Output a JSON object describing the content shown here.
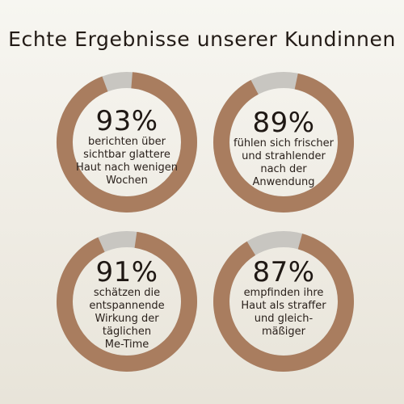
{
  "title": "Echte Ergebnisse unserer Kundinnen",
  "colors": {
    "ring_fill": "#a97d5f",
    "ring_track": "#c8c6c1",
    "background": "#f2f0ea"
  },
  "stats": [
    {
      "percent_label": "93%",
      "value": 93,
      "desc_lines": [
        "berichten über",
        "sichtbar glattere",
        "Haut nach wenigen",
        "Wochen"
      ]
    },
    {
      "percent_label": "89%",
      "value": 89,
      "desc_lines": [
        "fühlen sich frischer",
        "und strahlender",
        "nach der",
        "Anwendung"
      ]
    },
    {
      "percent_label": "91%",
      "value": 91,
      "desc_lines": [
        "schätzen die",
        "entspannende",
        "Wirkung der",
        "täglichen",
        "Me-Time"
      ]
    },
    {
      "percent_label": "87%",
      "value": 87,
      "desc_lines": [
        "empfinden ihre",
        "Haut als straffer",
        "und gleich-",
        "mäßiger"
      ]
    }
  ]
}
